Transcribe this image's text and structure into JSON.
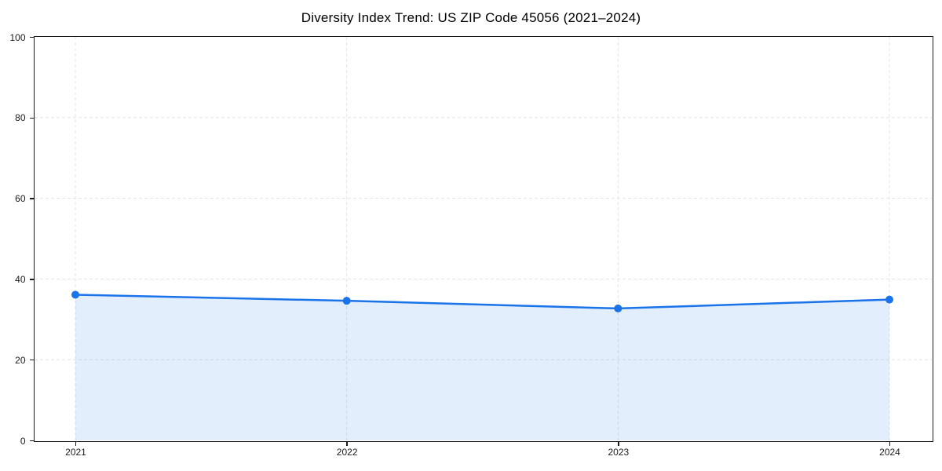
{
  "chart_data": {
    "type": "area",
    "title": "Diversity Index Trend: US ZIP Code 45056 (2021–2024)",
    "categories": [
      "2021",
      "2022",
      "2023",
      "2024"
    ],
    "series": [
      {
        "name": "Diversity Index",
        "values": [
          36.1,
          34.6,
          32.7,
          34.9
        ]
      }
    ],
    "xlabel": "",
    "ylabel": "",
    "ylim": [
      0,
      100
    ],
    "yticks": [
      0,
      20,
      40,
      60,
      80,
      100
    ],
    "grid": true,
    "grid_style": "dashed",
    "legend": false,
    "colors": {
      "line": "#1a73e8",
      "marker": "#1a73e8",
      "fill": "rgba(26,115,232,0.12)",
      "grid": "#e3e3e3",
      "axis": "#1a1a1a",
      "tick_label": "#1a1a1a",
      "title": "#000000",
      "background": "#ffffff"
    }
  }
}
